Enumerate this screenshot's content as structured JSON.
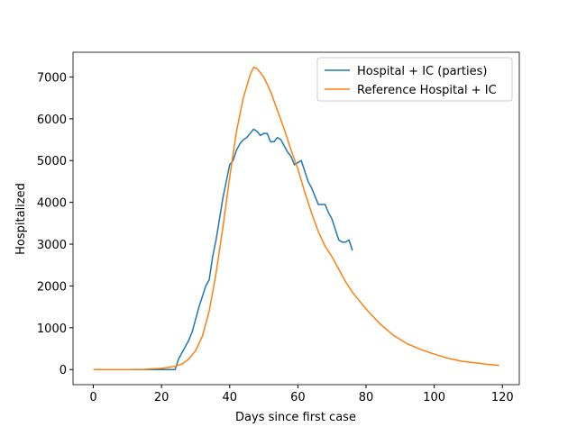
{
  "chart_data": {
    "type": "line",
    "xlabel": "Days since first case",
    "ylabel": "Hospitalized",
    "series": [
      {
        "name": "Hospital + IC (parties)",
        "color": "#1f77b4",
        "x": [
          0,
          5,
          10,
          15,
          20,
          24,
          25,
          26,
          27,
          28,
          29,
          30,
          31,
          32,
          33,
          34,
          35,
          36,
          37,
          38,
          39,
          40,
          41,
          42,
          43,
          44,
          45,
          46,
          47,
          48,
          49,
          50,
          51,
          52,
          53,
          54,
          55,
          56,
          57,
          58,
          59,
          60,
          61,
          62,
          63,
          64,
          65,
          66,
          67,
          68,
          69,
          70,
          71,
          72,
          73,
          74,
          75,
          76
        ],
        "values": [
          0,
          0,
          0,
          0,
          0,
          0,
          250,
          400,
          550,
          700,
          900,
          1200,
          1500,
          1750,
          2000,
          2150,
          2700,
          3100,
          3600,
          4100,
          4500,
          4900,
          5000,
          5250,
          5400,
          5500,
          5550,
          5650,
          5750,
          5700,
          5600,
          5650,
          5650,
          5450,
          5450,
          5550,
          5500,
          5350,
          5200,
          5100,
          4900,
          4950,
          5000,
          4750,
          4500,
          4350,
          4150,
          3950,
          3950,
          3950,
          3750,
          3600,
          3350,
          3100,
          3050,
          3050,
          3100,
          2850
        ]
      },
      {
        "name": "Reference Hospital + IC",
        "color": "#ff7f0e",
        "x": [
          0,
          5,
          10,
          15,
          20,
          22,
          24,
          26,
          28,
          30,
          32,
          34,
          36,
          38,
          40,
          42,
          44,
          46,
          47,
          48,
          50,
          52,
          54,
          56,
          58,
          60,
          62,
          64,
          66,
          68,
          70,
          72,
          74,
          76,
          78,
          80,
          84,
          88,
          92,
          96,
          100,
          104,
          108,
          112,
          116,
          119
        ],
        "values": [
          0,
          0,
          0,
          5,
          30,
          50,
          80,
          130,
          250,
          450,
          800,
          1400,
          2300,
          3400,
          4600,
          5700,
          6500,
          7050,
          7230,
          7200,
          7000,
          6650,
          6200,
          5750,
          5250,
          4800,
          4250,
          3750,
          3300,
          2950,
          2700,
          2400,
          2100,
          1850,
          1650,
          1450,
          1100,
          820,
          620,
          480,
          370,
          270,
          200,
          160,
          120,
          100
        ]
      }
    ],
    "xlim": [
      -5.95,
      124.95
    ],
    "xticks": [
      0,
      20,
      40,
      60,
      80,
      100,
      120
    ],
    "ylim": [
      -361.5,
      7591.5
    ],
    "yticks": [
      0,
      1000,
      2000,
      3000,
      4000,
      5000,
      6000,
      7000
    ],
    "legend": "upper right",
    "grid": false
  }
}
